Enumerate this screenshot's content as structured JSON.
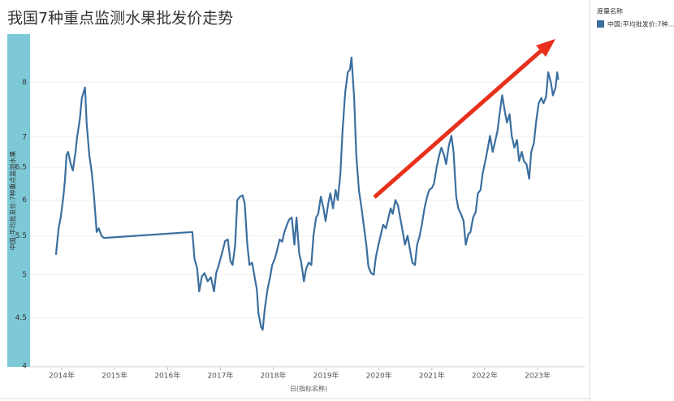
{
  "chart_data": {
    "type": "line",
    "title": "我国7种重点监测水果批发价走势",
    "y_label": "中国:平均批发价:7种重点监测水果",
    "x_label": "日(指标名称)",
    "legend_title": "度量名称",
    "log_scale": true,
    "grid": true,
    "xlim": [
      2013.4,
      2023.89
    ],
    "xticks": [
      {
        "value": 2014,
        "label": "2014年"
      },
      {
        "value": 2015,
        "label": "2015年"
      },
      {
        "value": 2016,
        "label": "2016年"
      },
      {
        "value": 2017,
        "label": "2017年"
      },
      {
        "value": 2018,
        "label": "2018年"
      },
      {
        "value": 2019,
        "label": "2019年"
      },
      {
        "value": 2020,
        "label": "2020年"
      },
      {
        "value": 2021,
        "label": "2021年"
      },
      {
        "value": 2022,
        "label": "2022年"
      },
      {
        "value": 2023,
        "label": "2023年"
      }
    ],
    "ylim": [
      4,
      9
    ],
    "yticks": [
      4,
      4.5,
      5,
      5.5,
      6,
      6.5,
      7,
      8
    ],
    "x": [
      2013.89,
      2013.94,
      2013.98,
      2014.03,
      2014.06,
      2014.09,
      2014.12,
      2014.17,
      2014.21,
      2014.26,
      2014.29,
      2014.34,
      2014.38,
      2014.44,
      2014.47,
      2014.52,
      2014.57,
      2014.61,
      2014.66,
      2014.7,
      2014.75,
      2014.8,
      2016.47,
      2016.51,
      2016.56,
      2016.6,
      2016.65,
      2016.7,
      2016.76,
      2016.82,
      2016.88,
      2016.92,
      2016.97,
      2017.03,
      2017.09,
      2017.14,
      2017.19,
      2017.23,
      2017.28,
      2017.32,
      2017.37,
      2017.42,
      2017.46,
      2017.51,
      2017.55,
      2017.6,
      2017.64,
      2017.69,
      2017.72,
      2017.77,
      2017.8,
      2017.84,
      2017.89,
      2017.94,
      2017.98,
      2018.03,
      2018.07,
      2018.12,
      2018.17,
      2018.21,
      2018.26,
      2018.3,
      2018.35,
      2018.4,
      2018.44,
      2018.49,
      2018.53,
      2018.58,
      2018.62,
      2018.67,
      2018.72,
      2018.76,
      2018.81,
      2018.85,
      2018.9,
      2018.95,
      2018.99,
      2019.04,
      2019.08,
      2019.13,
      2019.18,
      2019.22,
      2019.27,
      2019.31,
      2019.36,
      2019.41,
      2019.45,
      2019.48,
      2019.53,
      2019.57,
      2019.62,
      2019.67,
      2019.71,
      2019.76,
      2019.8,
      2019.85,
      2019.9,
      2019.94,
      2019.99,
      2020.03,
      2020.08,
      2020.13,
      2020.17,
      2020.22,
      2020.26,
      2020.31,
      2020.36,
      2020.4,
      2020.45,
      2020.49,
      2020.54,
      2020.59,
      2020.63,
      2020.68,
      2020.72,
      2020.77,
      2020.81,
      2020.86,
      2020.91,
      2020.95,
      2021.0,
      2021.04,
      2021.09,
      2021.14,
      2021.18,
      2021.23,
      2021.27,
      2021.32,
      2021.37,
      2021.41,
      2021.46,
      2021.5,
      2021.55,
      2021.6,
      2021.64,
      2021.69,
      2021.73,
      2021.78,
      2021.83,
      2021.87,
      2021.92,
      2021.96,
      2022.01,
      2022.06,
      2022.1,
      2022.15,
      2022.19,
      2022.24,
      2022.28,
      2022.33,
      2022.38,
      2022.42,
      2022.47,
      2022.51,
      2022.56,
      2022.61,
      2022.65,
      2022.7,
      2022.74,
      2022.79,
      2022.84,
      2022.88,
      2022.93,
      2022.97,
      2023.02,
      2023.07,
      2023.11,
      2023.16,
      2023.2,
      2023.25,
      2023.29,
      2023.34,
      2023.37,
      2023.39
    ],
    "series": [
      {
        "name": "中国:平均批发价:7种...",
        "color": "#3b6f9f",
        "values": [
          5.25,
          5.6,
          5.75,
          6.05,
          6.3,
          6.7,
          6.75,
          6.55,
          6.45,
          6.75,
          7.0,
          7.3,
          7.7,
          7.9,
          7.25,
          6.7,
          6.4,
          6.05,
          5.55,
          5.6,
          5.5,
          5.47,
          5.55,
          5.2,
          5.08,
          4.8,
          4.98,
          5.02,
          4.92,
          4.97,
          4.8,
          5.02,
          5.12,
          5.27,
          5.43,
          5.45,
          5.17,
          5.12,
          5.38,
          6.0,
          6.05,
          6.07,
          5.95,
          5.38,
          5.12,
          5.15,
          5.0,
          4.82,
          4.55,
          4.4,
          4.37,
          4.6,
          4.82,
          4.97,
          5.12,
          5.2,
          5.3,
          5.45,
          5.42,
          5.55,
          5.65,
          5.72,
          5.75,
          5.38,
          5.75,
          5.27,
          5.15,
          4.92,
          5.07,
          5.15,
          5.12,
          5.5,
          5.75,
          5.8,
          6.05,
          5.88,
          5.7,
          5.95,
          6.1,
          5.88,
          6.15,
          6.0,
          6.4,
          7.1,
          7.8,
          8.2,
          8.25,
          8.5,
          7.7,
          6.7,
          6.15,
          5.88,
          5.65,
          5.38,
          5.1,
          5.02,
          5.0,
          5.22,
          5.38,
          5.5,
          5.65,
          5.6,
          5.72,
          5.88,
          5.8,
          6.0,
          5.92,
          5.75,
          5.55,
          5.38,
          5.5,
          5.3,
          5.15,
          5.12,
          5.38,
          5.5,
          5.65,
          5.88,
          6.05,
          6.15,
          6.18,
          6.25,
          6.5,
          6.7,
          6.82,
          6.7,
          6.55,
          6.85,
          7.02,
          6.75,
          6.05,
          5.88,
          5.8,
          5.7,
          5.38,
          5.52,
          5.55,
          5.75,
          5.83,
          6.1,
          6.15,
          6.4,
          6.6,
          6.82,
          7.02,
          6.75,
          6.9,
          7.1,
          7.4,
          7.75,
          7.45,
          7.25,
          7.4,
          7.02,
          6.82,
          6.95,
          6.6,
          6.75,
          6.6,
          6.55,
          6.32,
          6.75,
          6.9,
          7.25,
          7.6,
          7.7,
          7.6,
          7.72,
          8.2,
          8.0,
          7.75,
          7.9,
          8.2,
          8.05
        ]
      }
    ]
  }
}
